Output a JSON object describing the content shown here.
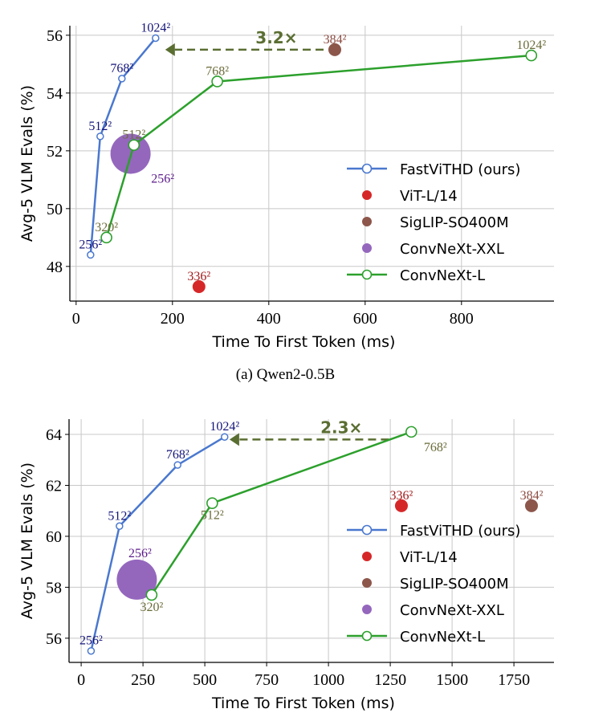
{
  "chart_data": [
    {
      "type": "scatter",
      "caption": "(a) Qwen2-0.5B",
      "xlabel": "Time To First Token (ms)",
      "ylabel": "Avg-5 VLM Evals (%)",
      "xlim": [
        -13,
        992
      ],
      "ylim": [
        46.8,
        56.33
      ],
      "xticks": [
        0,
        200,
        400,
        600,
        800
      ],
      "yticks": [
        48,
        50,
        52,
        54,
        56
      ],
      "grid": true,
      "legend_placement": "center-right",
      "series": [
        {
          "name": "FastViTHD (ours)",
          "color": "#4a78cf",
          "label_color": "#14147a",
          "marker": "open-circle-small",
          "line": true,
          "points": [
            {
              "x": 30,
              "y": 48.4,
              "label": "256²",
              "pos": "above"
            },
            {
              "x": 50,
              "y": 52.5,
              "label": "512²",
              "pos": "above"
            },
            {
              "x": 95,
              "y": 54.5,
              "label": "768²",
              "pos": "above"
            },
            {
              "x": 165,
              "y": 55.9,
              "label": "1024²",
              "pos": "above"
            }
          ]
        },
        {
          "name": "ViT-L/14",
          "color": "#d62728",
          "label_color": "#a01818",
          "marker": "filled-circle",
          "line": false,
          "points": [
            {
              "x": 255,
              "y": 47.3,
              "label": "336²",
              "pos": "above"
            }
          ]
        },
        {
          "name": "SigLIP-SO400M",
          "color": "#8c564b",
          "label_color": "#8c4a40",
          "marker": "filled-circle",
          "line": false,
          "points": [
            {
              "x": 537,
              "y": 55.5,
              "label": "384²",
              "pos": "above"
            }
          ]
        },
        {
          "name": "ConvNeXt-XXL",
          "color": "#9467bd",
          "label_color": "#5a1a8a",
          "marker": "filled-circle-large",
          "line": false,
          "points": [
            {
              "x": 113,
              "y": 51.9,
              "label": "256²",
              "pos": "below-right"
            }
          ]
        },
        {
          "name": "ConvNeXt-L",
          "color": "#2ca02c",
          "label_color": "#6b6b3a",
          "marker": "open-circle",
          "line": true,
          "points": [
            {
              "x": 63,
              "y": 49.0,
              "label": "320²",
              "pos": "above"
            },
            {
              "x": 120,
              "y": 52.2,
              "label": "512²",
              "pos": "above"
            },
            {
              "x": 293,
              "y": 54.4,
              "label": "768²",
              "pos": "above"
            },
            {
              "x": 945,
              "y": 55.3,
              "label": "1024²",
              "pos": "above"
            }
          ]
        }
      ],
      "annotation": {
        "text": "3.2×",
        "from": [
          537,
          55.5
        ],
        "to": [
          185,
          55.5
        ],
        "color": "#5a6e32"
      }
    },
    {
      "type": "scatter",
      "xlabel": "Time To First Token (ms)",
      "ylabel": "Avg-5 VLM Evals (%)",
      "xlim": [
        -49,
        1912
      ],
      "ylim": [
        55.05,
        64.6
      ],
      "xticks": [
        0,
        250,
        500,
        750,
        1000,
        1250,
        1500,
        1750
      ],
      "yticks": [
        56,
        58,
        60,
        62,
        64
      ],
      "grid": true,
      "legend_placement": "center-right",
      "series": [
        {
          "name": "FastViTHD (ours)",
          "color": "#4a78cf",
          "label_color": "#14147a",
          "marker": "open-circle-small",
          "line": true,
          "points": [
            {
              "x": 40,
              "y": 55.5,
              "label": "256²",
              "pos": "above"
            },
            {
              "x": 155,
              "y": 60.4,
              "label": "512²",
              "pos": "above"
            },
            {
              "x": 390,
              "y": 62.8,
              "label": "768²",
              "pos": "above"
            },
            {
              "x": 580,
              "y": 63.9,
              "label": "1024²",
              "pos": "above"
            }
          ]
        },
        {
          "name": "ViT-L/14",
          "color": "#d62728",
          "label_color": "#a01818",
          "marker": "filled-circle",
          "line": false,
          "points": [
            {
              "x": 1295,
              "y": 61.2,
              "label": "336²",
              "pos": "above"
            }
          ]
        },
        {
          "name": "SigLIP-SO400M",
          "color": "#8c564b",
          "label_color": "#8c4a40",
          "marker": "filled-circle",
          "line": false,
          "points": [
            {
              "x": 1821,
              "y": 61.2,
              "label": "384²",
              "pos": "above"
            }
          ]
        },
        {
          "name": "ConvNeXt-XXL",
          "color": "#9467bd",
          "label_color": "#5a1a8a",
          "marker": "filled-circle-large",
          "line": false,
          "points": [
            {
              "x": 225,
              "y": 58.3,
              "label": "256²",
              "pos": "above"
            }
          ]
        },
        {
          "name": "ConvNeXt-L",
          "color": "#2ca02c",
          "label_color": "#6b6b3a",
          "marker": "open-circle",
          "line": true,
          "points": [
            {
              "x": 285,
              "y": 57.7,
              "label": "320²",
              "pos": "below"
            },
            {
              "x": 530,
              "y": 61.3,
              "label": "512²",
              "pos": "below"
            },
            {
              "x": 1335,
              "y": 64.1,
              "label": "768²",
              "pos": "below-right"
            }
          ]
        }
      ],
      "annotation": {
        "text": "2.3×",
        "from": [
          1290,
          63.8
        ],
        "to": [
          600,
          63.8
        ],
        "color": "#5a6e32"
      }
    }
  ]
}
